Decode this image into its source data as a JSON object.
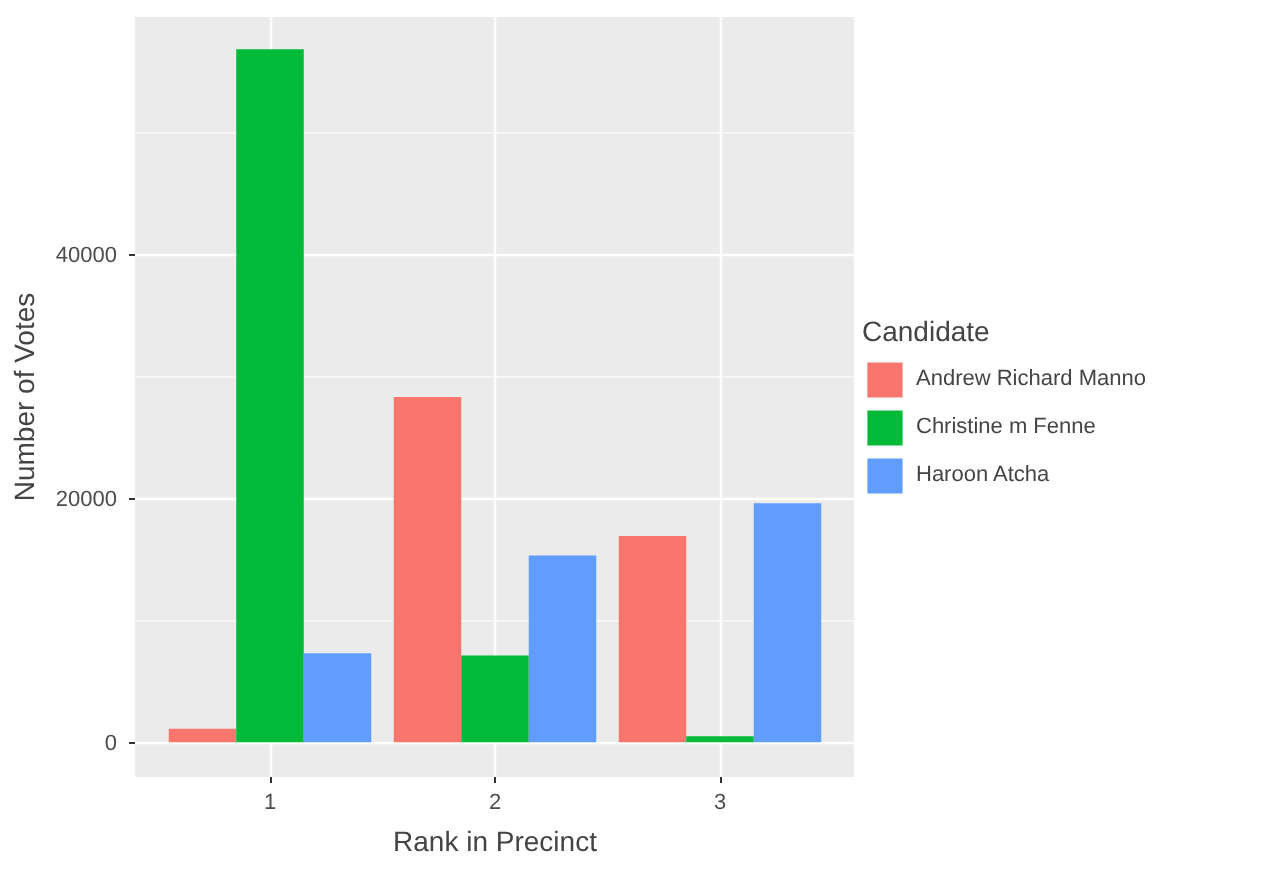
{
  "chart_data": {
    "type": "bar",
    "xlabel": "Rank in Precinct",
    "ylabel": "Number of Votes",
    "legend_title": "Candidate",
    "categories": [
      "1",
      "2",
      "3"
    ],
    "series": [
      {
        "name": "Andrew Richard Manno",
        "color": "#f8766d",
        "values": [
          1100,
          28300,
          16900
        ]
      },
      {
        "name": "Christine m Fenne",
        "color": "#00ba38",
        "values": [
          56800,
          7100,
          500
        ]
      },
      {
        "name": "Haroon Atcha",
        "color": "#619cff",
        "values": [
          7300,
          15300,
          19600
        ]
      }
    ],
    "ylim": [
      -2850,
      59450
    ],
    "yticks": [
      0,
      20000,
      40000
    ],
    "grid": true,
    "legend": "right"
  }
}
